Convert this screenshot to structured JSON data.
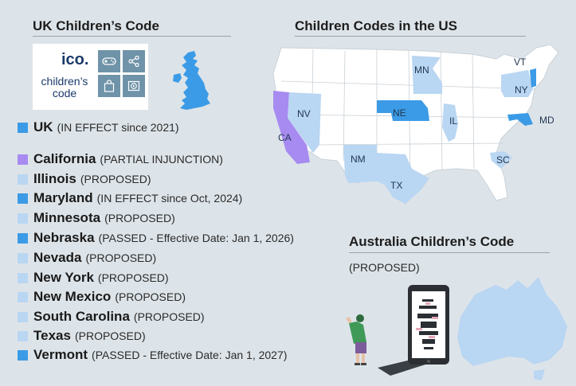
{
  "uk": {
    "heading": "UK Children’s Code",
    "logo": {
      "word": "ico.",
      "line1": "children’s",
      "line2": "code",
      "icons": [
        "gamepad-icon",
        "share-icon",
        "shopping-bag-icon",
        "play-icon"
      ]
    }
  },
  "us": {
    "heading": "Children Codes in the US",
    "map_labels": [
      "CA",
      "NV",
      "NM",
      "TX",
      "NE",
      "MN",
      "IL",
      "SC",
      "NY",
      "VT",
      "MD"
    ]
  },
  "australia": {
    "heading": "Australia Children’s Code",
    "status": "(PROPOSED)"
  },
  "colors": {
    "in_effect": "#3c9be6",
    "partial": "#a78bf0",
    "proposed": "#b9d6f2",
    "land": "#ffffff",
    "ocean_bg": "#dde4e9"
  },
  "legend": [
    {
      "name": "UK",
      "status": "(IN EFFECT since 2021)",
      "color": "#3c9be6"
    },
    {
      "name": "California",
      "status": "(PARTIAL INJUNCTION)",
      "color": "#a78bf0"
    },
    {
      "name": "Illinois",
      "status": "(PROPOSED)",
      "color": "#b9d6f2"
    },
    {
      "name": "Maryland",
      "status": "(IN EFFECT since Oct, 2024)",
      "color": "#3c9be6"
    },
    {
      "name": "Minnesota",
      "status": "(PROPOSED)",
      "color": "#b9d6f2"
    },
    {
      "name": "Nebraska",
      "status": "(PASSED - Effective Date: Jan 1, 2026)",
      "color": "#3c9be6"
    },
    {
      "name": "Nevada",
      "status": "(PROPOSED)",
      "color": "#b9d6f2"
    },
    {
      "name": "New York",
      "status": "(PROPOSED)",
      "color": "#b9d6f2"
    },
    {
      "name": "New Mexico",
      "status": "(PROPOSED)",
      "color": "#b9d6f2"
    },
    {
      "name": "South Carolina",
      "status": "(PROPOSED)",
      "color": "#b9d6f2"
    },
    {
      "name": "Texas",
      "status": "(PROPOSED)",
      "color": "#b9d6f2"
    },
    {
      "name": "Vermont",
      "status": "(PASSED - Effective Date: Jan 1, 2027)",
      "color": "#3c9be6"
    }
  ]
}
